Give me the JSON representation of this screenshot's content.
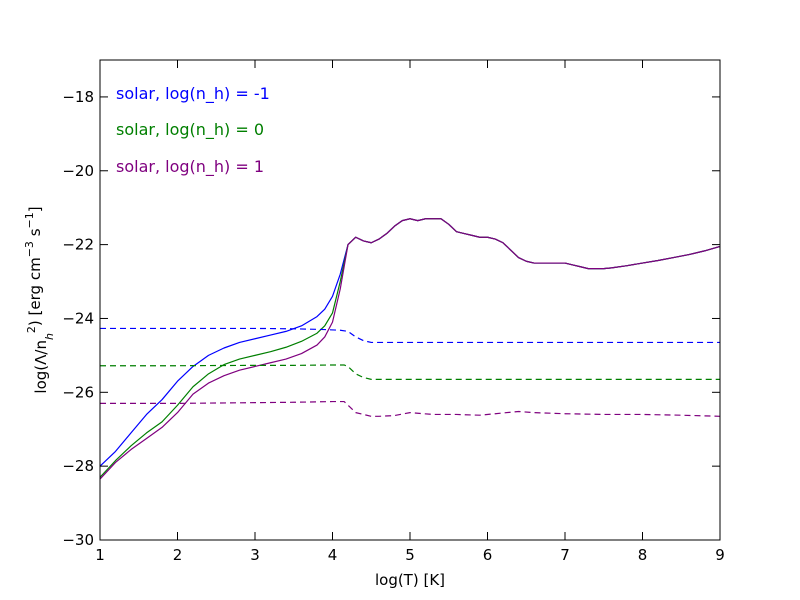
{
  "chart_data": {
    "type": "line",
    "xlabel": "log(T) [K]",
    "ylabel_parts": [
      "log(Λ/n",
      "h",
      "2",
      ") [erg cm",
      "−3",
      " s",
      "−1",
      "]"
    ],
    "xlim": [
      1,
      9
    ],
    "ylim": [
      -30,
      -17
    ],
    "xticks": [
      "1",
      "2",
      "3",
      "4",
      "5",
      "6",
      "7",
      "8",
      "9"
    ],
    "yticks": [
      "−30",
      "−28",
      "−26",
      "−24",
      "−22",
      "−20",
      "−18"
    ],
    "xtick_values": [
      1,
      2,
      3,
      4,
      5,
      6,
      7,
      8,
      9
    ],
    "ytick_values": [
      -30,
      -28,
      -26,
      -24,
      -22,
      -20,
      -18
    ],
    "legend_placement": "top-left",
    "grid": false,
    "series": [
      {
        "name": "solar, log(n_h) = -1",
        "color": "#0000ff",
        "style": "solid",
        "x": [
          1.0,
          1.2,
          1.4,
          1.6,
          1.8,
          2.0,
          2.2,
          2.4,
          2.6,
          2.8,
          3.0,
          3.2,
          3.4,
          3.6,
          3.8,
          3.9,
          4.0,
          4.1,
          4.2,
          4.3,
          4.4,
          4.5,
          4.6,
          4.7,
          4.8,
          4.9,
          5.0,
          5.1,
          5.2,
          5.3,
          5.4,
          5.5,
          5.6,
          5.7,
          5.8,
          5.9,
          6.0,
          6.1,
          6.2,
          6.3,
          6.4,
          6.5,
          6.6,
          6.7,
          6.8,
          6.9,
          7.0,
          7.1,
          7.2,
          7.3,
          7.4,
          7.5,
          7.6,
          7.8,
          8.0,
          8.2,
          8.4,
          8.6,
          8.8,
          9.0
        ],
        "y": [
          -28.0,
          -27.6,
          -27.1,
          -26.6,
          -26.2,
          -25.7,
          -25.3,
          -25.0,
          -24.8,
          -24.65,
          -24.55,
          -24.45,
          -24.35,
          -24.2,
          -23.95,
          -23.75,
          -23.4,
          -22.8,
          -22.0,
          -21.8,
          -21.9,
          -21.95,
          -21.85,
          -21.7,
          -21.5,
          -21.35,
          -21.3,
          -21.35,
          -21.3,
          -21.3,
          -21.3,
          -21.45,
          -21.65,
          -21.7,
          -21.75,
          -21.8,
          -21.8,
          -21.85,
          -21.95,
          -22.15,
          -22.35,
          -22.45,
          -22.5,
          -22.5,
          -22.5,
          -22.5,
          -22.5,
          -22.55,
          -22.6,
          -22.65,
          -22.65,
          -22.65,
          -22.63,
          -22.57,
          -22.5,
          -22.43,
          -22.35,
          -22.27,
          -22.17,
          -22.05
        ]
      },
      {
        "name": "solar, log(n_h) = 0",
        "color": "#007f00",
        "style": "solid",
        "x": [
          1.0,
          1.2,
          1.4,
          1.6,
          1.8,
          2.0,
          2.2,
          2.4,
          2.6,
          2.8,
          3.0,
          3.2,
          3.4,
          3.6,
          3.8,
          3.9,
          4.0,
          4.1,
          4.2,
          4.3,
          4.4,
          4.5,
          4.6,
          4.7,
          4.8,
          4.9,
          5.0,
          5.1,
          5.2,
          5.3,
          5.4,
          5.5,
          5.6,
          5.7,
          5.8,
          5.9,
          6.0,
          6.1,
          6.2,
          6.3,
          6.4,
          6.5,
          6.6,
          6.7,
          6.8,
          6.9,
          7.0,
          7.1,
          7.2,
          7.3,
          7.4,
          7.5,
          7.6,
          7.8,
          8.0,
          8.2,
          8.4,
          8.6,
          8.8,
          9.0
        ],
        "y": [
          -28.3,
          -27.85,
          -27.45,
          -27.1,
          -26.8,
          -26.35,
          -25.85,
          -25.5,
          -25.25,
          -25.1,
          -25.0,
          -24.9,
          -24.78,
          -24.62,
          -24.4,
          -24.2,
          -23.85,
          -23.0,
          -22.0,
          -21.8,
          -21.9,
          -21.95,
          -21.85,
          -21.7,
          -21.5,
          -21.35,
          -21.3,
          -21.35,
          -21.3,
          -21.3,
          -21.3,
          -21.45,
          -21.65,
          -21.7,
          -21.75,
          -21.8,
          -21.8,
          -21.85,
          -21.95,
          -22.15,
          -22.35,
          -22.45,
          -22.5,
          -22.5,
          -22.5,
          -22.5,
          -22.5,
          -22.55,
          -22.6,
          -22.65,
          -22.65,
          -22.65,
          -22.63,
          -22.57,
          -22.5,
          -22.43,
          -22.35,
          -22.27,
          -22.17,
          -22.05
        ]
      },
      {
        "name": "solar, log(n_h) = 1",
        "color": "#7f007f",
        "style": "solid",
        "x": [
          1.0,
          1.2,
          1.4,
          1.6,
          1.8,
          2.0,
          2.2,
          2.4,
          2.6,
          2.8,
          3.0,
          3.2,
          3.4,
          3.6,
          3.8,
          3.9,
          4.0,
          4.1,
          4.2,
          4.3,
          4.4,
          4.5,
          4.6,
          4.7,
          4.8,
          4.9,
          5.0,
          5.1,
          5.2,
          5.3,
          5.4,
          5.5,
          5.6,
          5.7,
          5.8,
          5.9,
          6.0,
          6.1,
          6.2,
          6.3,
          6.4,
          6.5,
          6.6,
          6.7,
          6.8,
          6.9,
          7.0,
          7.1,
          7.2,
          7.3,
          7.4,
          7.5,
          7.6,
          7.8,
          8.0,
          8.2,
          8.4,
          8.6,
          8.8,
          9.0
        ],
        "y": [
          -28.35,
          -27.9,
          -27.55,
          -27.25,
          -26.95,
          -26.55,
          -26.05,
          -25.75,
          -25.55,
          -25.4,
          -25.3,
          -25.2,
          -25.1,
          -24.95,
          -24.72,
          -24.5,
          -24.1,
          -23.2,
          -22.0,
          -21.8,
          -21.9,
          -21.95,
          -21.85,
          -21.7,
          -21.5,
          -21.35,
          -21.3,
          -21.35,
          -21.3,
          -21.3,
          -21.3,
          -21.45,
          -21.65,
          -21.7,
          -21.75,
          -21.8,
          -21.8,
          -21.85,
          -21.95,
          -22.15,
          -22.35,
          -22.45,
          -22.5,
          -22.5,
          -22.5,
          -22.5,
          -22.5,
          -22.55,
          -22.6,
          -22.65,
          -22.65,
          -22.65,
          -22.63,
          -22.57,
          -22.5,
          -22.43,
          -22.35,
          -22.27,
          -22.17,
          -22.05
        ]
      },
      {
        "color": "#0000ff",
        "style": "dashed",
        "x": [
          1.0,
          2.0,
          3.0,
          3.5,
          3.9,
          4.1,
          4.2,
          4.3,
          4.4,
          4.5,
          4.6,
          4.8,
          5.0,
          5.5,
          6.0,
          6.5,
          7.0,
          7.5,
          8.0,
          8.5,
          9.0
        ],
        "y": [
          -24.27,
          -24.27,
          -24.27,
          -24.28,
          -24.3,
          -24.32,
          -24.35,
          -24.5,
          -24.6,
          -24.65,
          -24.65,
          -24.65,
          -24.65,
          -24.65,
          -24.65,
          -24.65,
          -24.65,
          -24.65,
          -24.65,
          -24.65,
          -24.65
        ]
      },
      {
        "color": "#007f00",
        "style": "dashed",
        "x": [
          1.0,
          2.0,
          3.0,
          3.5,
          4.0,
          4.15,
          4.2,
          4.3,
          4.4,
          4.5,
          4.6,
          4.8,
          5.0,
          5.5,
          6.0,
          6.5,
          7.0,
          7.5,
          8.0,
          8.5,
          9.0
        ],
        "y": [
          -25.28,
          -25.28,
          -25.27,
          -25.27,
          -25.26,
          -25.26,
          -25.3,
          -25.5,
          -25.6,
          -25.65,
          -25.65,
          -25.65,
          -25.65,
          -25.65,
          -25.65,
          -25.65,
          -25.65,
          -25.65,
          -25.65,
          -25.65,
          -25.65
        ]
      },
      {
        "color": "#7f007f",
        "style": "dashed",
        "x": [
          1.0,
          2.0,
          3.0,
          3.5,
          4.0,
          4.15,
          4.2,
          4.3,
          4.4,
          4.5,
          4.6,
          4.8,
          5.0,
          5.3,
          5.6,
          5.9,
          6.1,
          6.4,
          6.6,
          7.0,
          7.5,
          8.0,
          8.5,
          9.0
        ],
        "y": [
          -26.3,
          -26.3,
          -26.28,
          -26.27,
          -26.25,
          -26.25,
          -26.35,
          -26.55,
          -26.6,
          -26.65,
          -26.65,
          -26.63,
          -26.55,
          -26.6,
          -26.6,
          -26.62,
          -26.58,
          -26.52,
          -26.55,
          -26.58,
          -26.6,
          -26.6,
          -26.62,
          -26.65
        ]
      }
    ]
  }
}
